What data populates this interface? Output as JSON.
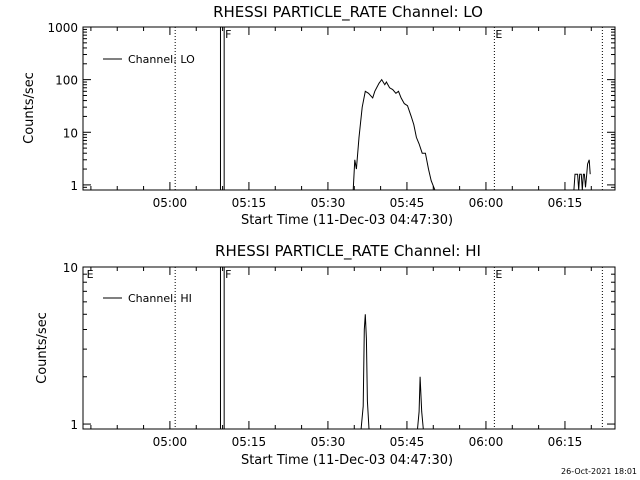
{
  "footer": {
    "stamp": "26-Oct-2021 18:01"
  },
  "chart_data": [
    {
      "type": "line",
      "title": "RHESSI PARTICLE_RATE Channel: LO",
      "xlabel": "Start Time (11-Dec-03 04:47:30)",
      "ylabel": "Counts/sec",
      "yscale": "log",
      "xlim": [
        -4,
        97
      ],
      "ylim": [
        0.8,
        1000
      ],
      "x_ticks": [
        {
          "value": 12.5,
          "label": "05:00"
        },
        {
          "value": 27.5,
          "label": "05:15"
        },
        {
          "value": 42.5,
          "label": "05:30"
        },
        {
          "value": 57.5,
          "label": "05:45"
        },
        {
          "value": 72.5,
          "label": "06:00"
        },
        {
          "value": 87.5,
          "label": "06:15"
        }
      ],
      "y_ticks": [
        {
          "value": 1,
          "label": "1"
        },
        {
          "value": 10,
          "label": "10"
        },
        {
          "value": 100,
          "label": "100"
        },
        {
          "value": 1000,
          "label": "1000"
        }
      ],
      "x_minor": [
        -2.5,
        2.5,
        7.5,
        17.5,
        22.5,
        32.5,
        37.5,
        47.5,
        52.5,
        62.5,
        67.5,
        77.5,
        82.5,
        92.5
      ],
      "legend": [
        "Channel: LO"
      ],
      "markers": [
        {
          "x": 13.5,
          "style": "dotted",
          "label": ""
        },
        {
          "x": 22.1,
          "style": "solid",
          "label": ""
        },
        {
          "x": 22.8,
          "style": "solid",
          "label": "F"
        },
        {
          "x": 74.1,
          "style": "dotted",
          "label": "E"
        },
        {
          "x": 94.6,
          "style": "dotted",
          "label": ""
        }
      ],
      "x_minutes": [
        47.3,
        47.6,
        47.9,
        48.4,
        49.0,
        49.6,
        50.2,
        51.0,
        51.4,
        52.2,
        52.7,
        53.3,
        53.6,
        54.2,
        54.8,
        55.4,
        55.9,
        56.4,
        57.0,
        57.6,
        58.3,
        58.8,
        59.3,
        59.8,
        60.4,
        61.0,
        61.6,
        62.1,
        62.8,
        63.3,
        63.8
      ],
      "values": [
        0.8,
        3,
        2,
        8,
        30,
        60,
        55,
        45,
        60,
        85,
        100,
        80,
        90,
        70,
        65,
        55,
        60,
        45,
        35,
        32,
        20,
        14,
        8,
        6,
        4,
        4,
        2,
        1.2,
        0.8,
        0.8,
        0.8
      ],
      "tail_x_minutes": [
        89.2,
        89.4,
        89.9,
        90.1,
        90.3,
        90.6,
        90.8,
        91.0,
        91.2,
        91.4,
        91.6,
        91.8,
        92.1,
        92.3
      ],
      "tail_values": [
        0.8,
        1.6,
        1.6,
        0.8,
        1.6,
        1.6,
        0.8,
        1.6,
        1.6,
        0.9,
        1.5,
        2.5,
        3,
        1.6
      ]
    },
    {
      "type": "line",
      "title": "RHESSI PARTICLE_RATE Channel: HI",
      "xlabel": "Start Time (11-Dec-03 04:47:30)",
      "ylabel": "Counts/sec",
      "yscale": "log",
      "xlim": [
        -4,
        97
      ],
      "ylim": [
        0.93,
        10
      ],
      "x_ticks": [
        {
          "value": 12.5,
          "label": "05:00"
        },
        {
          "value": 27.5,
          "label": "05:15"
        },
        {
          "value": 42.5,
          "label": "05:30"
        },
        {
          "value": 57.5,
          "label": "05:45"
        },
        {
          "value": 72.5,
          "label": "06:00"
        },
        {
          "value": 87.5,
          "label": "06:15"
        }
      ],
      "y_ticks": [
        {
          "value": 1,
          "label": "1"
        },
        {
          "value": 10,
          "label": "10"
        }
      ],
      "x_minor": [
        -2.5,
        2.5,
        7.5,
        17.5,
        22.5,
        32.5,
        37.5,
        47.5,
        52.5,
        62.5,
        67.5,
        77.5,
        82.5,
        92.5
      ],
      "legend": [
        "Channel: HI"
      ],
      "markers": [
        {
          "x": -3.5,
          "style": "none",
          "label": "E"
        },
        {
          "x": 13.5,
          "style": "dotted",
          "label": ""
        },
        {
          "x": 22.1,
          "style": "solid",
          "label": ""
        },
        {
          "x": 22.8,
          "style": "solid",
          "label": "F"
        },
        {
          "x": 74.1,
          "style": "dotted",
          "label": "E"
        },
        {
          "x": 94.6,
          "style": "dotted",
          "label": ""
        }
      ],
      "x_minutes": [
        48.8,
        49.2,
        49.4,
        49.6,
        49.8,
        50.0,
        50.3,
        59.5,
        59.8,
        60.0,
        60.3,
        60.6
      ],
      "values": [
        0.93,
        1.3,
        4.0,
        5.0,
        3.5,
        1.4,
        0.93,
        0.93,
        1.2,
        2.0,
        1.2,
        0.93
      ]
    }
  ]
}
